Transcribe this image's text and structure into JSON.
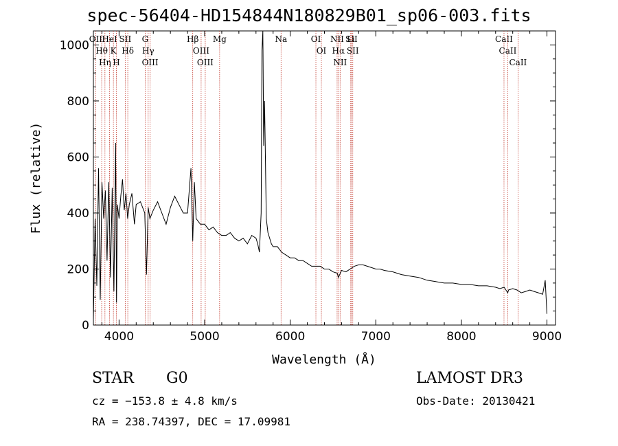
{
  "chart_data": {
    "type": "line",
    "title": "spec-56404-HD154844N180829B01_sp06-003.fits",
    "xlabel": "Wavelength (Å)",
    "ylabel": "Flux (relative)",
    "xlim": [
      3700,
      9100
    ],
    "ylim": [
      0,
      1050
    ],
    "xticks": [
      4000,
      5000,
      6000,
      7000,
      8000,
      9000
    ],
    "yticks": [
      0,
      200,
      400,
      600,
      800,
      1000
    ],
    "grid": false,
    "series": [
      {
        "name": "spectrum",
        "x": [
          3700,
          3720,
          3740,
          3760,
          3780,
          3800,
          3820,
          3840,
          3860,
          3880,
          3900,
          3920,
          3940,
          3960,
          3970,
          3980,
          4000,
          4020,
          4040,
          4060,
          4080,
          4100,
          4120,
          4150,
          4180,
          4200,
          4250,
          4300,
          4320,
          4340,
          4360,
          4400,
          4450,
          4500,
          4550,
          4600,
          4650,
          4700,
          4750,
          4800,
          4840,
          4861,
          4880,
          4900,
          4950,
          5000,
          5050,
          5100,
          5150,
          5200,
          5250,
          5300,
          5350,
          5400,
          5450,
          5500,
          5550,
          5600,
          5620,
          5640,
          5660,
          5670,
          5680,
          5690,
          5700,
          5710,
          5720,
          5740,
          5760,
          5780,
          5800,
          5850,
          5900,
          5950,
          6000,
          6050,
          6100,
          6150,
          6200,
          6250,
          6300,
          6350,
          6400,
          6450,
          6500,
          6550,
          6563,
          6600,
          6650,
          6700,
          6750,
          6800,
          6850,
          6900,
          6950,
          7000,
          7050,
          7100,
          7200,
          7300,
          7400,
          7500,
          7600,
          7700,
          7800,
          7900,
          8000,
          8100,
          8200,
          8300,
          8400,
          8450,
          8500,
          8542,
          8550,
          8600,
          8650,
          8700,
          8750,
          8800,
          8850,
          8900,
          8950,
          8980,
          9000
        ],
        "values": [
          20,
          380,
          140,
          560,
          90,
          510,
          380,
          480,
          230,
          510,
          170,
          490,
          120,
          650,
          80,
          430,
          380,
          460,
          520,
          410,
          470,
          380,
          430,
          470,
          360,
          430,
          440,
          400,
          180,
          420,
          380,
          410,
          440,
          400,
          360,
          420,
          460,
          430,
          400,
          400,
          560,
          300,
          510,
          380,
          360,
          360,
          340,
          350,
          330,
          320,
          320,
          330,
          310,
          300,
          310,
          290,
          320,
          310,
          290,
          260,
          400,
          980,
          1050,
          640,
          800,
          600,
          380,
          330,
          310,
          290,
          280,
          280,
          260,
          250,
          240,
          240,
          230,
          230,
          220,
          210,
          210,
          210,
          200,
          200,
          190,
          185,
          170,
          195,
          190,
          200,
          210,
          215,
          215,
          210,
          205,
          200,
          200,
          195,
          190,
          180,
          175,
          170,
          160,
          155,
          150,
          150,
          145,
          145,
          140,
          140,
          135,
          130,
          135,
          115,
          125,
          130,
          125,
          115,
          120,
          125,
          120,
          115,
          110,
          160,
          40
        ]
      }
    ],
    "line_markers": [
      {
        "label": "OII",
        "wavelength": 3727
      },
      {
        "label": "Hθ",
        "wavelength": 3797
      },
      {
        "label": "Hη",
        "wavelength": 3835
      },
      {
        "label": "HeI",
        "wavelength": 3889
      },
      {
        "label": "K",
        "wavelength": 3934
      },
      {
        "label": "SII",
        "wavelength": 4072
      },
      {
        "label": "H",
        "wavelength": 3969
      },
      {
        "label": "Hδ",
        "wavelength": 4102
      },
      {
        "label": "G",
        "wavelength": 4305
      },
      {
        "label": "Hγ",
        "wavelength": 4340
      },
      {
        "label": "OIII",
        "wavelength": 4363
      },
      {
        "label": "Hβ",
        "wavelength": 4861
      },
      {
        "label": "OIII",
        "wavelength": 4959
      },
      {
        "label": "OIII",
        "wavelength": 5007
      },
      {
        "label": "Mg",
        "wavelength": 5175
      },
      {
        "label": "Na",
        "wavelength": 5893
      },
      {
        "label": "OI",
        "wavelength": 6300
      },
      {
        "label": "OI",
        "wavelength": 6364
      },
      {
        "label": "NII",
        "wavelength": 6548
      },
      {
        "label": "Hα",
        "wavelength": 6563
      },
      {
        "label": "NII",
        "wavelength": 6583
      },
      {
        "label": "Li",
        "wavelength": 6707
      },
      {
        "label": "SII",
        "wavelength": 6716
      },
      {
        "label": "SII",
        "wavelength": 6731
      },
      {
        "label": "CaII",
        "wavelength": 8498
      },
      {
        "label": "CaII",
        "wavelength": 8542
      },
      {
        "label": "CaII",
        "wavelength": 8662
      }
    ]
  },
  "info": {
    "class": "STAR",
    "subclass": "G0",
    "survey": "LAMOST DR3",
    "cz": "cz = −153.8 ± 4.8 km/s",
    "obs_date": "Obs-Date: 20130421",
    "coords": "RA = 238.74397, DEC =  17.09981"
  }
}
